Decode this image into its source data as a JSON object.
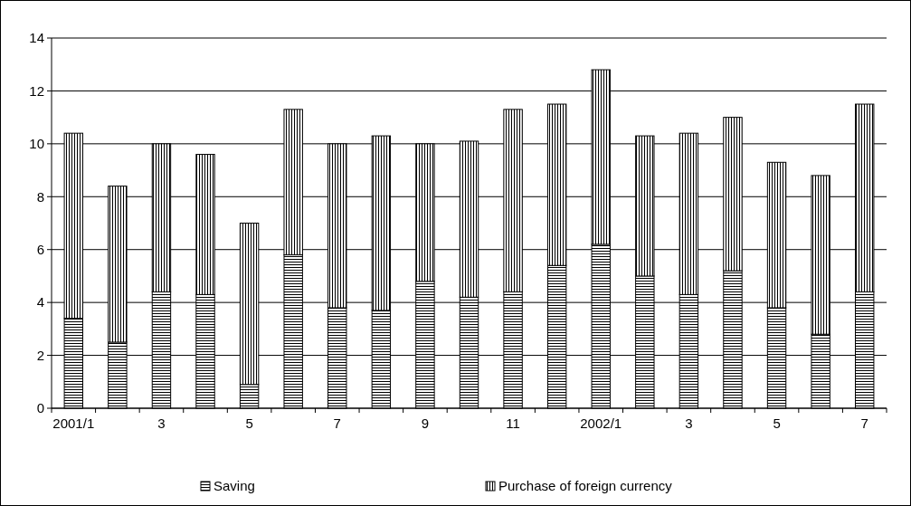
{
  "chart_data": {
    "type": "bar",
    "stacked": true,
    "categories": [
      "2001/1",
      null,
      "3",
      null,
      "5",
      null,
      "7",
      null,
      "9",
      null,
      "11",
      null,
      "2002/1",
      null,
      "3",
      null,
      "5",
      null,
      "7"
    ],
    "series": [
      {
        "name": "Saving",
        "color": "#000000",
        "values": [
          3.4,
          2.5,
          4.4,
          4.3,
          0.9,
          5.8,
          3.8,
          3.7,
          4.8,
          4.2,
          4.4,
          5.4,
          6.2,
          5.0,
          4.3,
          5.2,
          3.8,
          2.8,
          4.4
        ]
      },
      {
        "name": "Purchase of foreign currency",
        "color": "#000000",
        "values": [
          7.0,
          5.9,
          5.6,
          5.3,
          6.1,
          5.5,
          6.2,
          6.6,
          5.2,
          5.9,
          6.9,
          6.1,
          6.6,
          5.3,
          6.1,
          5.8,
          5.5,
          6.0,
          7.1
        ]
      }
    ],
    "ylim": [
      0,
      14
    ],
    "yticks": [
      0,
      2,
      4,
      6,
      8,
      10,
      12,
      14
    ],
    "grid": "y",
    "legend": "bottom"
  }
}
